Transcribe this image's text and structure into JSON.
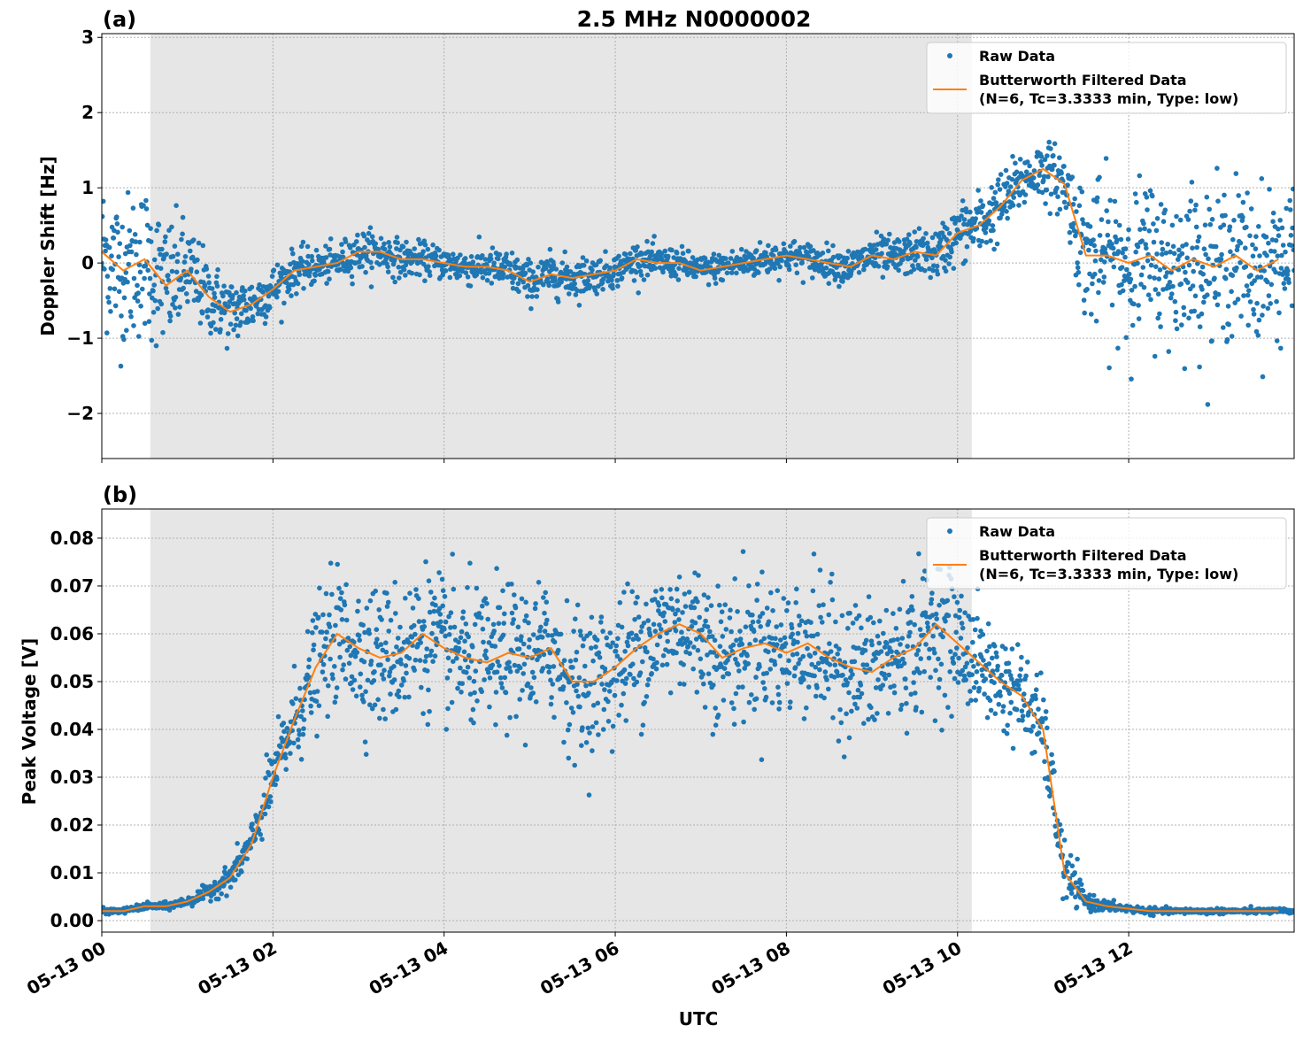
{
  "chart_data": [
    {
      "type": "scatter+line",
      "panel_label": "(a)",
      "title": "2.5 MHz N0000002",
      "ylabel": "Doppler Shift [Hz]",
      "xlabel": "",
      "xlim": [
        "05-13 00:00",
        "05-13 13:56"
      ],
      "ylim": [
        -2.6,
        3.05
      ],
      "yticks": [
        -2,
        -1,
        0,
        1,
        2,
        3
      ],
      "ytick_labels": [
        "−2",
        "−1",
        "0",
        "1",
        "2",
        "3"
      ],
      "grid": true,
      "legend": "top-right",
      "shaded_interval": [
        "05-13 00:34",
        "05-13 10:10"
      ],
      "t": [
        "00:00",
        "00:15",
        "00:30",
        "00:45",
        "01:00",
        "01:15",
        "01:30",
        "01:45",
        "02:00",
        "02:15",
        "02:30",
        "02:45",
        "03:00",
        "03:15",
        "03:30",
        "03:45",
        "04:00",
        "04:15",
        "04:30",
        "04:45",
        "05:00",
        "05:15",
        "05:30",
        "05:45",
        "06:00",
        "06:15",
        "06:30",
        "06:45",
        "07:00",
        "07:15",
        "07:30",
        "07:45",
        "08:00",
        "08:15",
        "08:30",
        "08:45",
        "09:00",
        "09:15",
        "09:30",
        "09:45",
        "10:00",
        "10:15",
        "10:30",
        "10:45",
        "11:00",
        "11:15",
        "11:30",
        "11:45",
        "12:00",
        "12:15",
        "12:30",
        "12:45",
        "13:00",
        "13:15",
        "13:30",
        "13:45"
      ],
      "series": [
        {
          "name": "Butterworth Filtered Data\n(N=6, Tc=3.3333 min, Type: low)",
          "kind": "line",
          "color": "#ff7f0e",
          "values": [
            0.15,
            -0.1,
            0.05,
            -0.3,
            -0.1,
            -0.45,
            -0.65,
            -0.55,
            -0.35,
            -0.1,
            -0.05,
            0.0,
            0.15,
            0.15,
            0.05,
            0.05,
            0.0,
            -0.05,
            -0.05,
            -0.1,
            -0.25,
            -0.15,
            -0.2,
            -0.15,
            -0.1,
            0.05,
            0.0,
            0.0,
            -0.1,
            -0.05,
            0.0,
            0.05,
            0.1,
            0.05,
            0.0,
            -0.05,
            0.1,
            0.05,
            0.15,
            0.1,
            0.4,
            0.5,
            0.75,
            1.1,
            1.25,
            1.05,
            0.1,
            0.1,
            0.0,
            0.1,
            -0.1,
            0.05,
            -0.05,
            0.1,
            -0.1,
            0.05
          ]
        },
        {
          "name": "Raw Data",
          "kind": "scatter",
          "color": "#1f77b4",
          "spread": [
            0.9,
            0.9,
            0.9,
            0.8,
            0.6,
            0.45,
            0.4,
            0.35,
            0.3,
            0.25,
            0.22,
            0.22,
            0.25,
            0.25,
            0.22,
            0.2,
            0.2,
            0.22,
            0.22,
            0.25,
            0.25,
            0.25,
            0.25,
            0.22,
            0.2,
            0.2,
            0.2,
            0.18,
            0.18,
            0.18,
            0.2,
            0.2,
            0.2,
            0.2,
            0.2,
            0.2,
            0.25,
            0.25,
            0.25,
            0.3,
            0.35,
            0.4,
            0.4,
            0.35,
            0.35,
            0.4,
            0.8,
            0.9,
            0.9,
            0.9,
            0.9,
            0.9,
            0.9,
            0.9,
            0.9,
            0.9
          ]
        }
      ]
    },
    {
      "type": "scatter+line",
      "panel_label": "(b)",
      "title": "",
      "ylabel": "Peak Voltage [V]",
      "xlabel": "UTC",
      "xlim": [
        "05-13 00:00",
        "05-13 13:56"
      ],
      "ylim": [
        -0.0024,
        0.0861
      ],
      "yticks": [
        0,
        0.01,
        0.02,
        0.03,
        0.04,
        0.05,
        0.06,
        0.07,
        0.08
      ],
      "ytick_labels": [
        "0.00",
        "0.01",
        "0.02",
        "0.03",
        "0.04",
        "0.05",
        "0.06",
        "0.07",
        "0.08"
      ],
      "xticks": [
        "05-13 00",
        "05-13 02",
        "05-13 04",
        "05-13 06",
        "05-13 08",
        "05-13 10",
        "05-13 12"
      ],
      "grid": true,
      "legend": "top-right",
      "shaded_interval": [
        "05-13 00:34",
        "05-13 10:10"
      ],
      "t": [
        "00:00",
        "00:15",
        "00:30",
        "00:45",
        "01:00",
        "01:15",
        "01:30",
        "01:45",
        "02:00",
        "02:15",
        "02:30",
        "02:45",
        "03:00",
        "03:15",
        "03:30",
        "03:45",
        "04:00",
        "04:15",
        "04:30",
        "04:45",
        "05:00",
        "05:15",
        "05:30",
        "05:45",
        "06:00",
        "06:15",
        "06:30",
        "06:45",
        "07:00",
        "07:15",
        "07:30",
        "07:45",
        "08:00",
        "08:15",
        "08:30",
        "08:45",
        "09:00",
        "09:15",
        "09:30",
        "09:45",
        "10:00",
        "10:15",
        "10:30",
        "10:45",
        "11:00",
        "11:15",
        "11:30",
        "11:45",
        "12:00",
        "12:15",
        "12:30",
        "12:45",
        "13:00",
        "13:15",
        "13:30",
        "13:45"
      ],
      "series": [
        {
          "name": "Butterworth Filtered Data\n(N=6, Tc=3.3333 min, Type: low)",
          "kind": "line",
          "color": "#ff7f0e",
          "values": [
            0.002,
            0.002,
            0.003,
            0.003,
            0.004,
            0.006,
            0.009,
            0.016,
            0.03,
            0.042,
            0.053,
            0.06,
            0.057,
            0.055,
            0.056,
            0.06,
            0.057,
            0.055,
            0.054,
            0.056,
            0.055,
            0.057,
            0.05,
            0.05,
            0.053,
            0.057,
            0.06,
            0.062,
            0.06,
            0.055,
            0.057,
            0.058,
            0.056,
            0.058,
            0.055,
            0.053,
            0.052,
            0.055,
            0.057,
            0.062,
            0.058,
            0.054,
            0.05,
            0.047,
            0.04,
            0.01,
            0.004,
            0.003,
            0.0025,
            0.002,
            0.002,
            0.002,
            0.002,
            0.002,
            0.002,
            0.002
          ]
        },
        {
          "name": "Raw Data",
          "kind": "scatter",
          "color": "#1f77b4",
          "spread": [
            0.0005,
            0.0005,
            0.0006,
            0.0007,
            0.0009,
            0.0015,
            0.0025,
            0.004,
            0.006,
            0.009,
            0.011,
            0.012,
            0.013,
            0.013,
            0.013,
            0.013,
            0.013,
            0.013,
            0.013,
            0.013,
            0.013,
            0.013,
            0.013,
            0.013,
            0.013,
            0.013,
            0.013,
            0.013,
            0.013,
            0.013,
            0.013,
            0.013,
            0.013,
            0.013,
            0.013,
            0.013,
            0.013,
            0.013,
            0.013,
            0.013,
            0.012,
            0.01,
            0.009,
            0.009,
            0.008,
            0.006,
            0.0015,
            0.001,
            0.0007,
            0.0006,
            0.0005,
            0.0005,
            0.0005,
            0.0005,
            0.0005,
            0.0005
          ]
        }
      ]
    }
  ],
  "legend": {
    "raw_label": "Raw Data",
    "filtered_label_line1": "Butterworth Filtered Data",
    "filtered_label_line2": "(N=6, Tc=3.3333 min, Type: low)"
  }
}
